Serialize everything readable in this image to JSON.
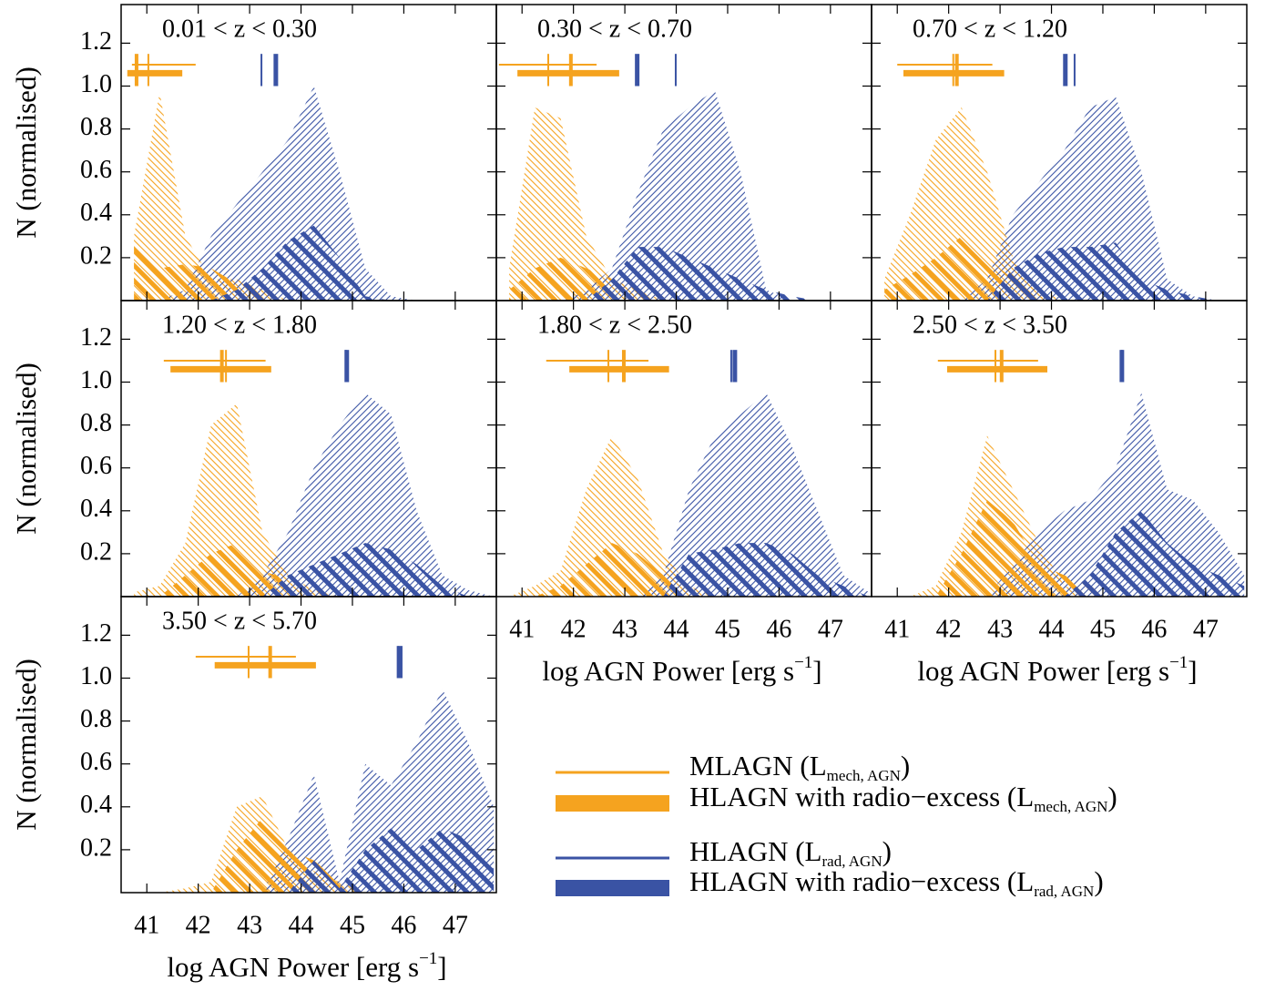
{
  "axes": {
    "xlim": [
      40.5,
      47.8
    ],
    "xticks": [
      41,
      42,
      43,
      44,
      45,
      46,
      47
    ],
    "ylim": [
      0,
      1.38
    ],
    "yticks": [
      0.2,
      0.4,
      0.6,
      0.8,
      {
        "value": 1,
        "label": "1.0"
      },
      1.2
    ],
    "y_label": "N (normalised)",
    "x_label": {
      "text": "log AGN Power [erg s",
      "superscript": "−1",
      "suffix": "]"
    }
  },
  "legend": [
    {
      "label": "MLAGN (L",
      "subscript": "mech, AGN",
      "suffix": ")",
      "color": "#f5a31f"
    },
    {
      "label": "HLAGN with radio−excess (L",
      "subscript": "mech, AGN",
      "suffix": ")",
      "color": "#f5a31f"
    },
    {
      "label": "HLAGN (L",
      "subscript": "rad, AGN",
      "suffix": ")",
      "color": "#3a53a4"
    },
    {
      "label": "HLAGN with radio−excess (L",
      "subscript": "rad, AGN",
      "suffix": ")",
      "color": "#3a53a4"
    }
  ],
  "chart_data": [
    {
      "type": "area",
      "title": "0.01 < z < 0.30",
      "x": [
        40.75,
        41.25,
        41.75,
        42.25,
        42.75,
        43.25,
        43.75,
        44.25,
        44.75,
        45.25,
        45.75,
        46.25,
        46.75,
        47.25,
        47.75
      ],
      "series": [
        {
          "values": [
            0.3,
            0.97,
            0.3,
            0.1,
            0.1,
            0.05,
            0,
            0,
            0,
            0,
            0,
            0,
            0,
            0,
            0
          ],
          "median": 41.03,
          "range": [
            40.71,
            41.95
          ]
        },
        {
          "values": [
            0.25,
            0.15,
            0.17,
            0.15,
            0.08,
            0.05,
            0,
            0,
            0,
            0,
            0,
            0,
            0,
            0,
            0
          ],
          "median": 40.8,
          "range": [
            40.62,
            41.69
          ]
        },
        {
          "values": [
            0,
            0,
            0.05,
            0.3,
            0.45,
            0.6,
            0.75,
            1.0,
            0.6,
            0.15,
            0.02,
            0,
            0,
            0,
            0
          ],
          "median": 43.23
        },
        {
          "values": [
            0,
            0,
            0,
            0,
            0.05,
            0.15,
            0.28,
            0.35,
            0.2,
            0.02,
            0,
            0,
            0,
            0,
            0
          ],
          "median": 43.51
        }
      ]
    },
    {
      "type": "area",
      "title": "0.30 < z < 0.70",
      "x": [
        40.75,
        41.25,
        41.75,
        42.25,
        42.75,
        43.25,
        43.75,
        44.25,
        44.75,
        45.25,
        45.75,
        46.25,
        46.75,
        47.25,
        47.75
      ],
      "series": [
        {
          "values": [
            0.15,
            0.9,
            0.85,
            0.3,
            0.1,
            0.05,
            0,
            0,
            0,
            0,
            0,
            0,
            0,
            0,
            0
          ],
          "median": 41.51,
          "range": [
            40.55,
            42.45
          ]
        },
        {
          "values": [
            0.05,
            0.15,
            0.2,
            0.15,
            0.1,
            0.05,
            0.02,
            0,
            0,
            0,
            0,
            0,
            0,
            0,
            0
          ],
          "median": 41.95,
          "range": [
            40.91,
            42.89
          ]
        },
        {
          "values": [
            0,
            0,
            0,
            0.05,
            0.15,
            0.5,
            0.8,
            0.9,
            0.98,
            0.6,
            0.05,
            0,
            0,
            0,
            0
          ],
          "median": 43.99
        },
        {
          "values": [
            0,
            0,
            0,
            0,
            0.1,
            0.25,
            0.25,
            0.2,
            0.15,
            0.1,
            0.05,
            0.02,
            0,
            0,
            0
          ],
          "median": 43.24
        }
      ]
    },
    {
      "type": "area",
      "title": "0.70 < z < 1.20",
      "x": [
        40.75,
        41.25,
        41.75,
        42.25,
        42.75,
        43.25,
        43.75,
        44.25,
        44.75,
        45.25,
        45.75,
        46.25,
        46.75,
        47.25,
        47.75
      ],
      "series": [
        {
          "values": [
            0.1,
            0.4,
            0.75,
            0.9,
            0.6,
            0.2,
            0.05,
            0,
            0,
            0,
            0,
            0,
            0,
            0,
            0
          ],
          "median": 42.09,
          "range": [
            41.0,
            42.85
          ]
        },
        {
          "values": [
            0.05,
            0.12,
            0.2,
            0.3,
            0.2,
            0.1,
            0.03,
            0,
            0,
            0,
            0,
            0,
            0,
            0,
            0
          ],
          "median": 42.16,
          "range": [
            41.12,
            43.08
          ]
        },
        {
          "values": [
            0,
            0,
            0,
            0,
            0.1,
            0.4,
            0.55,
            0.7,
            0.9,
            0.95,
            0.6,
            0.1,
            0.02,
            0,
            0
          ],
          "median": 44.45
        },
        {
          "values": [
            0,
            0,
            0,
            0,
            0,
            0.15,
            0.22,
            0.25,
            0.25,
            0.27,
            0.1,
            0.05,
            0.02,
            0,
            0
          ],
          "median": 44.27
        }
      ]
    },
    {
      "type": "area",
      "title": "1.20 < z < 1.80",
      "x": [
        40.75,
        41.25,
        41.75,
        42.25,
        42.75,
        43.25,
        43.75,
        44.25,
        44.75,
        45.25,
        45.75,
        46.25,
        46.75,
        47.25,
        47.75
      ],
      "series": [
        {
          "values": [
            0.02,
            0.05,
            0.25,
            0.8,
            0.9,
            0.3,
            0.1,
            0.03,
            0,
            0,
            0,
            0,
            0,
            0,
            0
          ],
          "median": 42.54,
          "range": [
            41.33,
            43.31
          ]
        },
        {
          "values": [
            0,
            0,
            0.1,
            0.2,
            0.25,
            0.12,
            0.08,
            0.03,
            0,
            0,
            0,
            0,
            0,
            0,
            0
          ],
          "median": 42.46,
          "range": [
            41.46,
            43.42
          ]
        },
        {
          "values": [
            0,
            0,
            0,
            0,
            0,
            0.1,
            0.3,
            0.6,
            0.8,
            0.95,
            0.85,
            0.4,
            0.1,
            0.03,
            0
          ],
          "median": 44.87
        },
        {
          "values": [
            0,
            0,
            0,
            0,
            0,
            0,
            0.1,
            0.15,
            0.2,
            0.25,
            0.22,
            0.15,
            0.05,
            0,
            0
          ],
          "median": 44.89
        }
      ]
    },
    {
      "type": "area",
      "title": "1.80 < z < 2.50",
      "x": [
        40.75,
        41.25,
        41.75,
        42.25,
        42.75,
        43.25,
        43.75,
        44.25,
        44.75,
        45.25,
        45.75,
        46.25,
        46.75,
        47.25,
        47.75
      ],
      "series": [
        {
          "values": [
            0,
            0.05,
            0.12,
            0.5,
            0.75,
            0.55,
            0.2,
            0.05,
            0,
            0,
            0,
            0,
            0,
            0,
            0
          ],
          "median": 42.68,
          "range": [
            41.47,
            43.46
          ]
        },
        {
          "values": [
            0,
            0,
            0.05,
            0.15,
            0.25,
            0.2,
            0.1,
            0.05,
            0,
            0,
            0,
            0,
            0,
            0,
            0
          ],
          "median": 42.98,
          "range": [
            41.92,
            43.86
          ]
        },
        {
          "values": [
            0,
            0,
            0,
            0,
            0,
            0,
            0.1,
            0.5,
            0.75,
            0.85,
            0.95,
            0.7,
            0.4,
            0.1,
            0.02
          ],
          "median": 45.07
        },
        {
          "values": [
            0,
            0,
            0,
            0,
            0,
            0,
            0,
            0.2,
            0.22,
            0.25,
            0.25,
            0.2,
            0.1,
            0.05,
            0
          ],
          "median": 45.14
        }
      ]
    },
    {
      "type": "area",
      "title": "2.50 < z < 3.50",
      "x": [
        40.75,
        41.25,
        41.75,
        42.25,
        42.75,
        43.25,
        43.75,
        44.25,
        44.75,
        45.25,
        45.75,
        46.25,
        46.75,
        47.25,
        47.75
      ],
      "series": [
        {
          "values": [
            0,
            0,
            0.05,
            0.3,
            0.75,
            0.5,
            0.25,
            0.05,
            0,
            0,
            0,
            0,
            0,
            0,
            0
          ],
          "median": 42.91,
          "range": [
            41.79,
            43.74
          ]
        },
        {
          "values": [
            0,
            0,
            0,
            0.2,
            0.45,
            0.35,
            0.15,
            0.1,
            0.05,
            0,
            0,
            0,
            0,
            0,
            0
          ],
          "median": 43.03,
          "range": [
            41.97,
            43.92
          ]
        },
        {
          "values": [
            0,
            0,
            0,
            0,
            0,
            0.15,
            0.3,
            0.4,
            0.45,
            0.6,
            0.95,
            0.5,
            0.45,
            0.3,
            0.1
          ],
          "median": 45.37
        },
        {
          "values": [
            0,
            0,
            0,
            0,
            0,
            0,
            0,
            0,
            0.1,
            0.3,
            0.4,
            0.25,
            0.15,
            0.1,
            0.05
          ],
          "median": 45.37
        }
      ]
    },
    {
      "type": "area",
      "title": "3.50 < z < 5.70",
      "x": [
        40.75,
        41.25,
        41.75,
        42.25,
        42.75,
        43.25,
        43.75,
        44.25,
        44.75,
        45.25,
        45.75,
        46.25,
        46.75,
        47.25,
        47.75
      ],
      "series": [
        {
          "values": [
            0,
            0,
            0.02,
            0.05,
            0.4,
            0.45,
            0.2,
            0.1,
            0.05,
            0,
            0,
            0,
            0,
            0,
            0
          ],
          "median": 42.98,
          "range": [
            41.95,
            43.9
          ]
        },
        {
          "values": [
            0,
            0,
            0,
            0,
            0.2,
            0.35,
            0.2,
            0.15,
            0.05,
            0,
            0,
            0,
            0,
            0,
            0
          ],
          "median": 43.4,
          "range": [
            42.32,
            44.29
          ]
        },
        {
          "values": [
            0,
            0,
            0,
            0,
            0,
            0,
            0.25,
            0.55,
            0.05,
            0.6,
            0.5,
            0.7,
            0.95,
            0.7,
            0.4
          ],
          "median": 45.88
        },
        {
          "values": [
            0,
            0,
            0,
            0,
            0,
            0,
            0,
            0.15,
            0.02,
            0.2,
            0.3,
            0.2,
            0.3,
            0.25,
            0.15
          ],
          "median": 45.93
        }
      ]
    }
  ]
}
